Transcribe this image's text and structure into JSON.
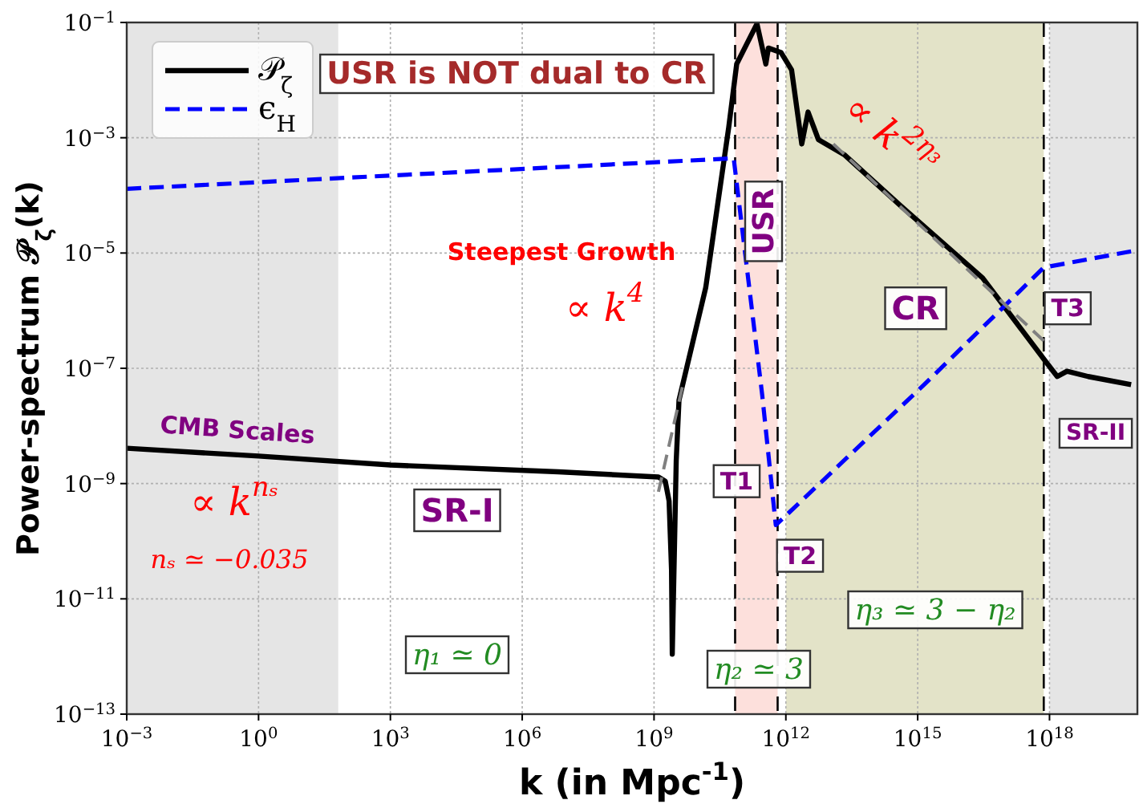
{
  "chart_data": {
    "type": "line",
    "xlabel": "k (in Mpc$^{-1}$)",
    "ylabel": "Power-spectrum 𝒫$_{ζ}$(k)",
    "log": "xy",
    "grid": true,
    "legend": "top left",
    "xlim": [
      0.001,
      1e+20
    ],
    "ylim": [
      1e-13,
      0.1
    ],
    "xticks": [
      {
        "value": 0.001,
        "label": "10$^{−3}$"
      },
      {
        "value": 1,
        "label": "10$^{0}$"
      },
      {
        "value": 1000,
        "label": "10$^{3}$"
      },
      {
        "value": 1000000.0,
        "label": "10$^{6}$"
      },
      {
        "value": 1000000000.0,
        "label": "10$^{9}$"
      },
      {
        "value": 1000000000000.0,
        "label": "10$^{12}$"
      },
      {
        "value": 1000000000000000.0,
        "label": "10$^{15}$"
      },
      {
        "value": 1e+18,
        "label": "10$^{18}$"
      }
    ],
    "yticks": [
      {
        "value": 1e-13,
        "label": "10$^{−13}$"
      },
      {
        "value": 1e-11,
        "label": "10$^{−11}$"
      },
      {
        "value": 1e-09,
        "label": "10$^{−9}$"
      },
      {
        "value": 1e-07,
        "label": "10$^{−7}$"
      },
      {
        "value": 1e-05,
        "label": "10$^{−5}$"
      },
      {
        "value": 0.001,
        "label": "10$^{−3}$"
      },
      {
        "value": 0.1,
        "label": "10$^{−1}$"
      }
    ],
    "bands": [
      {
        "axis": "x",
        "from": 0.001,
        "to": 65,
        "color": "#e5e5e5"
      },
      {
        "axis": "x",
        "from": 70000000000.0,
        "to": 650000000000.0,
        "color": "#fde0dc"
      },
      {
        "axis": "x",
        "from": 1000000000000.0,
        "to": 7.4e+17,
        "color": "#e3e3c8"
      },
      {
        "axis": "x",
        "from": 1e+18,
        "to": 1e+20,
        "color": "#e5e5e5"
      }
    ],
    "ref_lines": [
      {
        "axis": "x",
        "value": 70000000000.0,
        "color": "#000000",
        "line_style": "dashed"
      },
      {
        "axis": "x",
        "value": 650000000000.0,
        "color": "#000000",
        "line_style": "dashed"
      },
      {
        "axis": "x",
        "value": 7.4e+17,
        "color": "#000000",
        "line_style": "dashed"
      }
    ],
    "series": [
      {
        "name": "𝒫$_{ζ}$",
        "color": "#000000",
        "line_style": "solid",
        "x": [
          0.001,
          1,
          1000,
          6600000.0,
          1260000000.0,
          1800000000.0,
          2200000000.0,
          2500000000.0,
          2600000000.0,
          2900000000.0,
          3200000000.0,
          3700000000.0,
          15000000000.0,
          50000000000.0,
          76000000000.0,
          220000000000.0,
          350000000000.0,
          400000000000.0,
          780000000000.0,
          1350000000000.0,
          2300000000000.0,
          3200000000000.0,
          5500000000000.0,
          22000000000000.0,
          470000000000000.0,
          3e+16,
          8.5e+17,
          1.5e+18,
          2.5e+18,
          7.6e+18,
          7.2e+19
        ],
        "values": [
          4.1e-09,
          3e-09,
          2.1e-09,
          1.6e-09,
          1.3e-09,
          1.1e-09,
          5e-10,
          3.2e-11,
          1.1e-12,
          6.3e-11,
          2.5e-09,
          2.8e-08,
          2.5e-06,
          0.0015,
          0.019,
          0.095,
          0.019,
          0.036,
          0.03,
          0.015,
          0.00078,
          0.0028,
          0.00093,
          0.0005,
          6e-05,
          3.7e-06,
          1.26e-07,
          7.2e-08,
          8.9e-08,
          7.2e-08,
          5.2e-08
        ]
      },
      {
        "name": "ϵ$_{H}$",
        "color": "#0000ff",
        "line_style": "dashed",
        "x": [
          0.001,
          65000000000.0,
          290000000000.0,
          590000000000.0,
          1400000000000000.0,
          7.4e+17,
          7.2e+19
        ],
        "values": [
          0.00013,
          0.00044,
          3.4e-08,
          1.9e-10,
          5.2e-08,
          5.6e-06,
          1.07e-05
        ]
      },
      {
        "color": "#808080",
        "line_style": "dashed",
        "x": [
          1260000000.0,
          4400000000.0
        ],
        "values": [
          7.2e-10,
          4.7e-08
        ]
      },
      {
        "color": "#808080",
        "line_style": "dashed",
        "x": [
          12000000000000.0,
          7.4e+17
        ],
        "values": [
          0.00078,
          3e-07
        ]
      }
    ],
    "annotations": [
      "USR is NOT dual to CR",
      "Steepest Growth",
      "∝ k$^{4}$",
      "∝ k$^{2η₃}$",
      "CMB Scales",
      "∝ k$^{nₛ}$",
      "nₛ ≃ −0.035",
      "SR-I",
      "USR",
      {
        "text": "CR",
        "x": 900000000000000.0,
        "y": 1.1e-06
      },
      {
        "text": "T1",
        "x": 76000000000.0,
        "y": 1.1e-09
      },
      {
        "text": "T2",
        "x": 2100000000000.0,
        "y": 5.6e-11
      },
      {
        "text": "T3",
        "x": 2.6e+18,
        "y": 1.1e-06
      },
      "SR-II",
      "η₁ ≃ 0",
      "η₂ ≃ 3",
      "η₃ ≃ 3 − η₂"
    ]
  }
}
